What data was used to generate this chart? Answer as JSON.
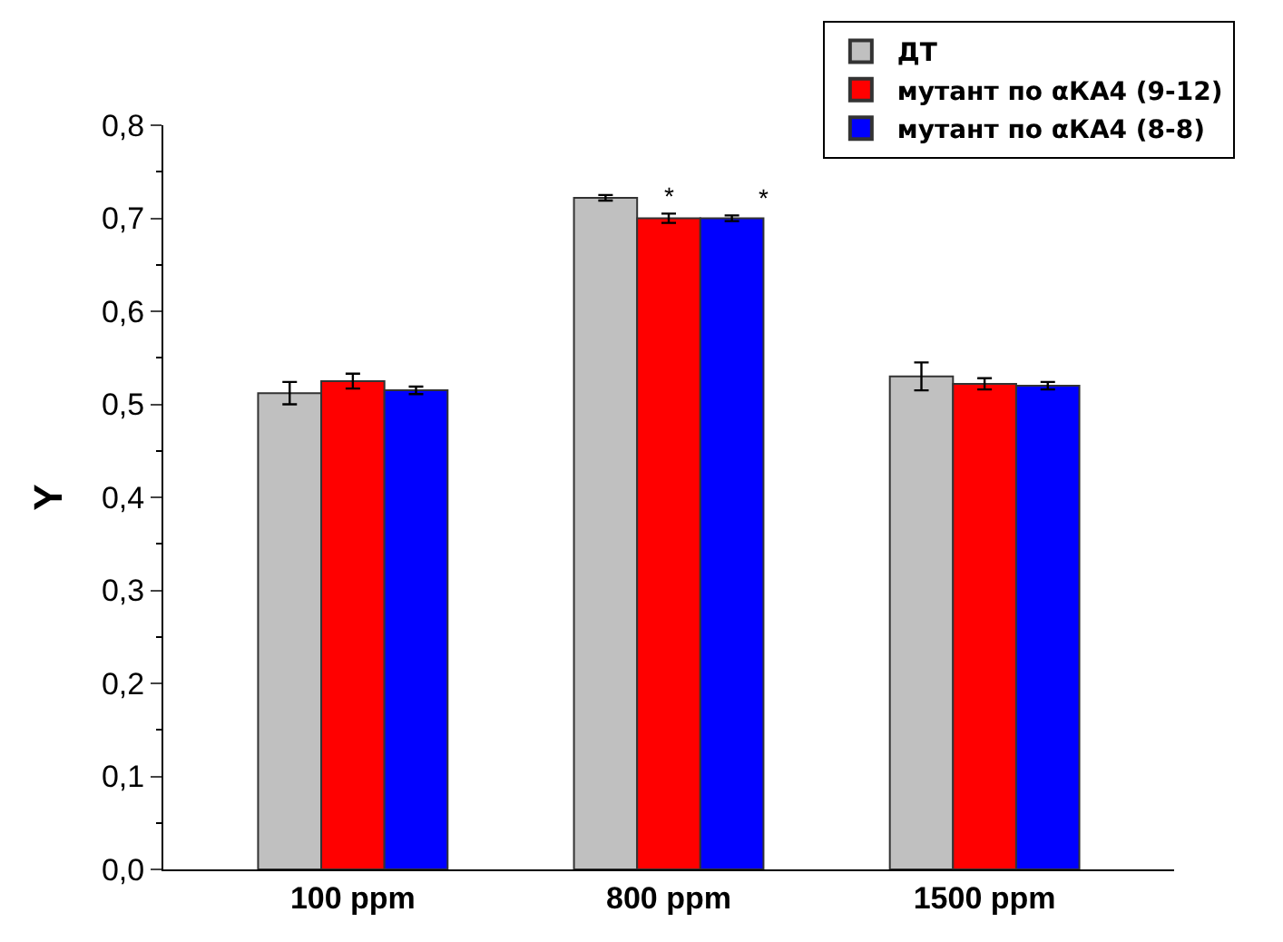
{
  "chart_data": {
    "type": "bar",
    "ylabel": "Y",
    "categories": [
      "100 ppm",
      "800 ppm",
      "1500 ppm"
    ],
    "series": [
      {
        "name": "ДТ",
        "color": "#c0c0c0",
        "values": [
          0.512,
          0.722,
          0.53
        ],
        "errors": [
          0.012,
          0.003,
          0.015
        ]
      },
      {
        "name": "мутант по αКА4 (9-12)",
        "color": "#ff0000",
        "values": [
          0.525,
          0.7,
          0.522
        ],
        "errors": [
          0.008,
          0.005,
          0.006
        ]
      },
      {
        "name": "мутант по αКА4 (8-8)",
        "color": "#0000ff",
        "values": [
          0.515,
          0.7,
          0.52
        ],
        "errors": [
          0.004,
          0.003,
          0.004
        ]
      }
    ],
    "ylim": [
      0,
      0.8
    ],
    "yticks": [
      {
        "value": 0,
        "label": "0,0"
      },
      {
        "value": 0.1,
        "label": "0,1"
      },
      {
        "value": 0.2,
        "label": "0,2"
      },
      {
        "value": 0.3,
        "label": "0,3"
      },
      {
        "value": 0.4,
        "label": "0,4"
      },
      {
        "value": 0.5,
        "label": "0,5"
      },
      {
        "value": 0.6,
        "label": "0,6"
      },
      {
        "value": 0.7,
        "label": "0,7"
      },
      {
        "value": 0.8,
        "label": "0,8"
      }
    ],
    "annotations": [
      "*",
      "*"
    ],
    "legend": "top right"
  }
}
